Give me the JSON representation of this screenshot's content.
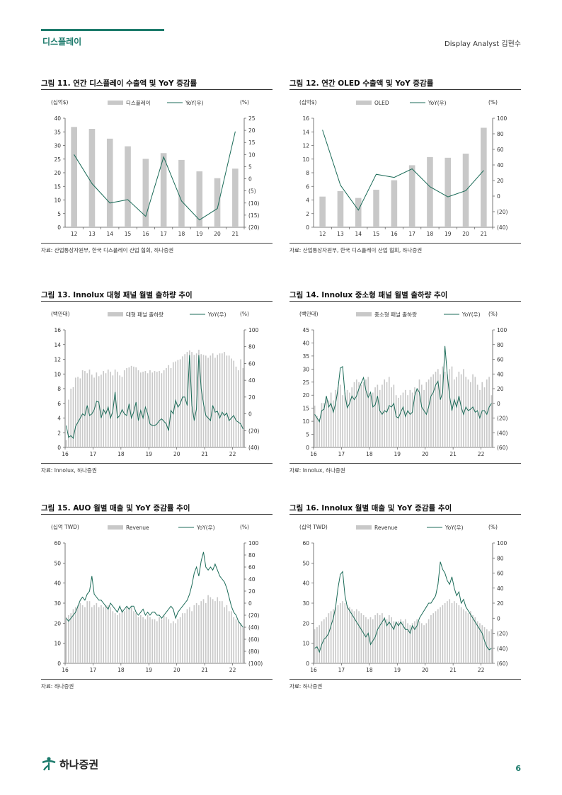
{
  "header": {
    "section": "디스플레이",
    "analyst": "Display Analyst 김현수"
  },
  "footer": {
    "logo_text": "하나증권",
    "page": "6"
  },
  "colors": {
    "brand": "#1b7a6b",
    "bar": "#c8c8c8",
    "line": "#1b6b58"
  },
  "figures": [
    {
      "title": "그림 11. 연간 디스플레이 수출액 및 YoY 증감률",
      "source": "자료: 산업통상자원부, 한국 디스플레이 산업 협회, 하나증권"
    },
    {
      "title": "그림 12. 연간 OLED 수출액 및 YoY 증감률",
      "source": "자료: 산업통상자원부, 한국 디스플레이 산업 협회, 하나증권"
    },
    {
      "title": "그림 13. Innolux 대형 패널 월별 출하량 추이",
      "source": "자료: Innolux, 하나증권"
    },
    {
      "title": "그림 14. Innolux 중소형 패널 월별 출하량 추이",
      "source": "자료: Innolux, 하나증권"
    },
    {
      "title": "그림 15. AUO 월별 매출 및 YoY 증감률 추이",
      "source": "자료: 하나증권"
    },
    {
      "title": "그림 16. Innolux 월별 매출 및 YoY 증감률 추이",
      "source": "자료: 하나증권"
    }
  ],
  "chart_data": [
    {
      "type": "bar",
      "mode": "annual",
      "left_unit": "(십억$)",
      "right_unit": "(%)",
      "bar_name": "디스플레이",
      "line_name": "YoY(우)",
      "categories": [
        "12",
        "13",
        "14",
        "15",
        "16",
        "17",
        "18",
        "19",
        "20",
        "21"
      ],
      "values": [
        36.8,
        36.1,
        32.5,
        29.7,
        25.1,
        27.2,
        24.7,
        20.5,
        18.0,
        21.5
      ],
      "yoy": [
        10.0,
        -2.0,
        -10.0,
        -8.6,
        -15.5,
        9.0,
        -9.2,
        -17.0,
        -12.3,
        19.5
      ],
      "ylim": [
        0,
        40
      ],
      "yticks": [
        "0",
        "5",
        "10",
        "15",
        "20",
        "25",
        "30",
        "35",
        "40"
      ],
      "y2lim": [
        -20,
        25
      ],
      "y2ticks": [
        "(20)",
        "(15)",
        "(10)",
        "(5)",
        "0",
        "5",
        "10",
        "15",
        "20",
        "25"
      ]
    },
    {
      "type": "bar",
      "mode": "annual",
      "left_unit": "(십억$)",
      "right_unit": "(%)",
      "bar_name": "OLED",
      "line_name": "YoY(우)",
      "categories": [
        "12",
        "13",
        "14",
        "15",
        "16",
        "17",
        "18",
        "19",
        "20",
        "21"
      ],
      "values": [
        4.5,
        5.3,
        4.3,
        5.5,
        6.9,
        9.1,
        10.3,
        10.2,
        10.8,
        14.6
      ],
      "yoy": [
        85,
        14,
        -18,
        28,
        24,
        35,
        12,
        -1,
        7,
        33
      ],
      "ylim": [
        0,
        16
      ],
      "yticks": [
        "0",
        "2",
        "4",
        "6",
        "8",
        "10",
        "12",
        "14",
        "16"
      ],
      "y2lim": [
        -40,
        100
      ],
      "y2ticks": [
        "(40)",
        "(20)",
        "0",
        "20",
        "40",
        "60",
        "80",
        "100"
      ]
    },
    {
      "type": "bar",
      "mode": "monthly",
      "left_unit": "(백만대)",
      "right_unit": "(%)",
      "bar_name": "대형 패널 출하량",
      "line_name": "YoY(우)",
      "x_labels": [
        "16",
        "17",
        "18",
        "19",
        "20",
        "21",
        "22"
      ],
      "months": 77,
      "values": [
        1.0,
        6.5,
        8.0,
        8.2,
        9.5,
        9.6,
        9.4,
        10.5,
        10.4,
        10.1,
        10.6,
        9.9,
        9.5,
        10.2,
        9.7,
        9.9,
        10.4,
        10.1,
        10.6,
        10.3,
        9.8,
        10.6,
        10.3,
        9.8,
        9.6,
        10.5,
        10.8,
        10.9,
        11.1,
        11.0,
        10.9,
        10.5,
        10.2,
        10.3,
        10.4,
        10.1,
        10.5,
        10.2,
        10.4,
        10.3,
        10.4,
        10.1,
        10.5,
        10.8,
        11.2,
        10.8,
        11.6,
        11.7,
        11.9,
        12.0,
        12.4,
        12.7,
        13.0,
        13.2,
        13.0,
        12.6,
        12.8,
        13.3,
        12.7,
        12.6,
        12.5,
        12.2,
        12.5,
        12.8,
        12.2,
        12.6,
        12.8,
        12.8,
        13.0,
        12.5,
        12.5,
        12.1,
        11.8,
        11.0,
        10.5,
        12.0,
        10.8
      ],
      "yoy": [
        -14,
        -28,
        -26,
        -29,
        -15,
        -10,
        -5,
        0,
        -2,
        10,
        -2,
        0,
        5,
        15,
        14,
        -5,
        5,
        0,
        8,
        -5,
        3,
        26,
        -5,
        -2,
        5,
        0,
        -2,
        12,
        -5,
        2,
        14,
        -8,
        4,
        -5,
        8,
        0,
        -12,
        -14,
        -14,
        -12,
        -8,
        -6,
        -9,
        -12,
        -20,
        4,
        0,
        16,
        8,
        12,
        20,
        20,
        10,
        70,
        10,
        -8,
        6,
        70,
        30,
        12,
        -2,
        -5,
        -8,
        10,
        2,
        3,
        -5,
        2,
        -2,
        1,
        -8,
        -5,
        -2,
        -8,
        -10,
        -12,
        -18
      ],
      "ylim": [
        0,
        16
      ],
      "yticks": [
        "0",
        "2",
        "4",
        "6",
        "8",
        "10",
        "12",
        "14",
        "16"
      ],
      "y2lim": [
        -40,
        100
      ],
      "y2ticks": [
        "(40)",
        "(20)",
        "0",
        "20",
        "40",
        "60",
        "80",
        "100"
      ]
    },
    {
      "type": "bar",
      "mode": "monthly",
      "left_unit": "(백만대)",
      "right_unit": "(%)",
      "bar_name": "중소형 패널 출하량",
      "line_name": "YoY(우)",
      "x_labels": [
        "16",
        "17",
        "18",
        "19",
        "20",
        "21",
        "22"
      ],
      "months": 77,
      "values": [
        16,
        12,
        11,
        17,
        17,
        19,
        18,
        21,
        18,
        22,
        23,
        24,
        20,
        21,
        22,
        21,
        23,
        25,
        26,
        25,
        24,
        25,
        26,
        27,
        20,
        21,
        23,
        24,
        22,
        24,
        26,
        25,
        27,
        23,
        24,
        20,
        19,
        20,
        21,
        22,
        20,
        22,
        21,
        23,
        22,
        26,
        24,
        22,
        25,
        26,
        27,
        28,
        29,
        30,
        28,
        31,
        29,
        28,
        30,
        31,
        26,
        27,
        29,
        28,
        30,
        27,
        26,
        25,
        28,
        27,
        24,
        22,
        25,
        23,
        26,
        27,
        20
      ],
      "yoy": [
        -15,
        -20,
        -25,
        -10,
        -8,
        10,
        -5,
        0,
        -12,
        0,
        20,
        48,
        50,
        12,
        -6,
        0,
        10,
        5,
        10,
        20,
        28,
        35,
        18,
        8,
        15,
        -5,
        -2,
        10,
        -10,
        -15,
        -10,
        -12,
        -3,
        -5,
        0,
        -18,
        -20,
        -12,
        -5,
        -18,
        -10,
        -15,
        -12,
        10,
        20,
        15,
        -5,
        -10,
        -15,
        -5,
        10,
        15,
        25,
        30,
        5,
        15,
        78,
        40,
        10,
        -10,
        5,
        -5,
        10,
        -5,
        -15,
        -5,
        -10,
        -8,
        -5,
        -12,
        -10,
        -20,
        -10,
        -10,
        -15,
        -5,
        0
      ],
      "ylim": [
        0,
        45
      ],
      "yticks": [
        "0",
        "5",
        "10",
        "15",
        "20",
        "25",
        "30",
        "35",
        "40",
        "45"
      ],
      "y2lim": [
        -60,
        100
      ],
      "y2ticks": [
        "(60)",
        "(40)",
        "(20)",
        "0",
        "20",
        "40",
        "60",
        "80",
        "100"
      ]
    },
    {
      "type": "bar",
      "mode": "monthly",
      "left_unit": "(십억 TWD)",
      "right_unit": "(%)",
      "bar_name": "Revenue",
      "line_name": "YoY(우)",
      "x_labels": [
        "16",
        "17",
        "18",
        "19",
        "20",
        "21",
        "22"
      ],
      "months": 77,
      "values": [
        23,
        24,
        25,
        27,
        28,
        29,
        30,
        29,
        28,
        31,
        31,
        28,
        29,
        30,
        28,
        29,
        28,
        29,
        29,
        28,
        26,
        25,
        24,
        25,
        27,
        26,
        28,
        27,
        28,
        26,
        25,
        23,
        24,
        23,
        22,
        24,
        23,
        22,
        22,
        21,
        23,
        22,
        24,
        23,
        22,
        20,
        21,
        20,
        22,
        23,
        25,
        25,
        27,
        28,
        26,
        29,
        30,
        29,
        31,
        32,
        30,
        34,
        33,
        32,
        31,
        33,
        31,
        31,
        28,
        29,
        26,
        26,
        23,
        22,
        21,
        20,
        18
      ],
      "yoy": [
        -25,
        -30,
        -25,
        -20,
        -15,
        -5,
        5,
        10,
        5,
        15,
        20,
        45,
        15,
        10,
        5,
        5,
        0,
        -5,
        -10,
        0,
        -5,
        -10,
        -15,
        -5,
        -15,
        -10,
        -5,
        -10,
        -5,
        -5,
        -15,
        -20,
        -15,
        -10,
        -20,
        -15,
        -20,
        -15,
        -15,
        -20,
        -20,
        -25,
        -20,
        -15,
        -10,
        -5,
        -10,
        -25,
        -15,
        -10,
        -5,
        0,
        5,
        15,
        30,
        50,
        60,
        45,
        70,
        85,
        60,
        55,
        60,
        55,
        65,
        55,
        45,
        40,
        35,
        25,
        10,
        -5,
        -15,
        -20,
        -30,
        -35,
        -40
      ],
      "ylim": [
        0,
        60
      ],
      "yticks": [
        "0",
        "10",
        "20",
        "30",
        "40",
        "50",
        "60"
      ],
      "y2lim": [
        -100,
        100
      ],
      "y2ticks": [
        "(100)",
        "(80)",
        "(60)",
        "(40)",
        "(20)",
        "0",
        "20",
        "40",
        "60",
        "80",
        "100"
      ]
    },
    {
      "type": "bar",
      "mode": "monthly",
      "left_unit": "(십억 TWD)",
      "right_unit": "(%)",
      "bar_name": "Revenue",
      "line_name": "YoY(우)",
      "x_labels": [
        "16",
        "17",
        "18",
        "19",
        "20",
        "21",
        "22"
      ],
      "months": 77,
      "values": [
        17,
        18,
        19,
        21,
        22,
        23,
        25,
        26,
        27,
        28,
        29,
        30,
        31,
        30,
        29,
        28,
        27,
        26,
        27,
        26,
        25,
        24,
        23,
        22,
        23,
        22,
        24,
        25,
        24,
        25,
        23,
        22,
        24,
        23,
        21,
        20,
        21,
        22,
        21,
        22,
        20,
        19,
        20,
        21,
        22,
        21,
        20,
        19,
        20,
        22,
        24,
        25,
        26,
        27,
        28,
        29,
        30,
        31,
        32,
        30,
        31,
        30,
        29,
        28,
        27,
        26,
        25,
        26,
        24,
        23,
        21,
        20,
        19,
        18,
        17,
        16,
        17
      ],
      "yoy": [
        -40,
        -38,
        -45,
        -35,
        -28,
        -25,
        -20,
        -10,
        0,
        15,
        40,
        58,
        62,
        30,
        15,
        10,
        5,
        0,
        -5,
        -10,
        -15,
        -20,
        -25,
        -20,
        -35,
        -30,
        -25,
        -15,
        -10,
        -5,
        0,
        -10,
        -5,
        -10,
        -15,
        -5,
        -10,
        -5,
        -10,
        -15,
        -15,
        -20,
        -10,
        -15,
        -10,
        0,
        5,
        10,
        15,
        20,
        20,
        25,
        30,
        45,
        75,
        65,
        60,
        50,
        45,
        55,
        40,
        30,
        35,
        20,
        25,
        15,
        10,
        5,
        0,
        -5,
        -10,
        -15,
        -20,
        -30,
        -38,
        -42,
        -40
      ],
      "ylim": [
        0,
        60
      ],
      "yticks": [
        "0",
        "10",
        "20",
        "30",
        "40",
        "50",
        "60"
      ],
      "y2lim": [
        -60,
        100
      ],
      "y2ticks": [
        "(60)",
        "(40)",
        "(20)",
        "0",
        "20",
        "40",
        "60",
        "80",
        "100"
      ]
    }
  ]
}
